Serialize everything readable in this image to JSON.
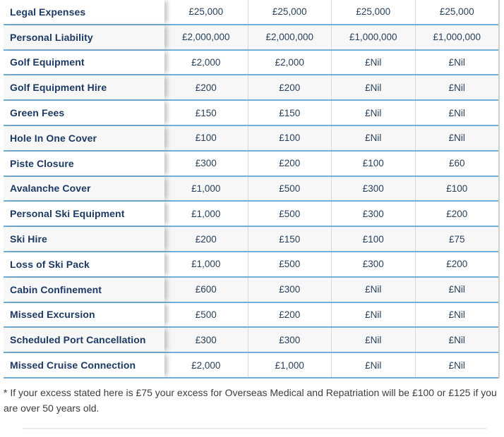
{
  "table": {
    "value_columns_count": 4,
    "rows": [
      {
        "label": "Legal Expenses",
        "values": [
          "£25,000",
          "£25,000",
          "£25,000",
          "£25,000"
        ]
      },
      {
        "label": "Personal Liability",
        "values": [
          "£2,000,000",
          "£2,000,000",
          "£1,000,000",
          "£1,000,000"
        ]
      },
      {
        "label": "Golf Equipment",
        "values": [
          "£2,000",
          "£2,000",
          "£Nil",
          "£Nil"
        ]
      },
      {
        "label": "Golf Equipment Hire",
        "values": [
          "£200",
          "£200",
          "£Nil",
          "£Nil"
        ]
      },
      {
        "label": "Green Fees",
        "values": [
          "£150",
          "£150",
          "£Nil",
          "£Nil"
        ]
      },
      {
        "label": "Hole In One Cover",
        "values": [
          "£100",
          "£100",
          "£Nil",
          "£Nil"
        ]
      },
      {
        "label": "Piste Closure",
        "values": [
          "£300",
          "£200",
          "£100",
          "£60"
        ]
      },
      {
        "label": "Avalanche Cover",
        "values": [
          "£1,000",
          "£500",
          "£300",
          "£100"
        ]
      },
      {
        "label": "Personal Ski Equipment",
        "values": [
          "£1,000",
          "£500",
          "£300",
          "£200"
        ]
      },
      {
        "label": "Ski Hire",
        "values": [
          "£200",
          "£150",
          "£100",
          "£75"
        ]
      },
      {
        "label": "Loss of Ski Pack",
        "values": [
          "£1,000",
          "£500",
          "£300",
          "£200"
        ]
      },
      {
        "label": "Cabin Confinement",
        "values": [
          "£600",
          "£300",
          "£Nil",
          "£Nil"
        ]
      },
      {
        "label": "Missed Excursion",
        "values": [
          "£500",
          "£200",
          "£Nil",
          "£Nil"
        ]
      },
      {
        "label": "Scheduled Port Cancellation",
        "values": [
          "£300",
          "£300",
          "£Nil",
          "£Nil"
        ]
      },
      {
        "label": "Missed Cruise Connection",
        "values": [
          "£2,000",
          "£1,000",
          "£Nil",
          "£Nil"
        ]
      }
    ]
  },
  "footnote": "* If your excess stated here is £75 your excess for Overseas Medical and Repatriation will be £100 or £125 if you are over 50 years old.",
  "colors": {
    "row_separator_blue": "#72aed8",
    "column_separator_gray": "#dadada",
    "alt_row_background": "#f7f7f7",
    "label_text_navy": "#1c3a63",
    "value_text_navy": "#29415c",
    "footnote_text": "#3d3d3d"
  }
}
